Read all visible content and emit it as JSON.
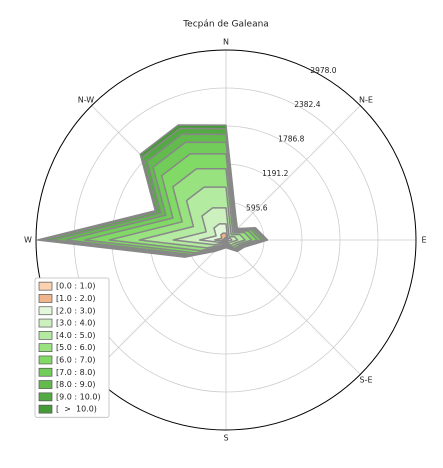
{
  "chart_data": {
    "type": "windrose",
    "title": "Tecpán de Galeana",
    "categories": [
      "N",
      null,
      "N-E",
      null,
      "E",
      null,
      "S-E",
      null,
      "S",
      null,
      null,
      null,
      "W",
      null,
      "N-W",
      null
    ],
    "rlim": [
      0,
      2978
    ],
    "rticks": [
      595.6,
      1191.2,
      1786.8,
      2382.4,
      {
        "value": 2978,
        "label": "2978.0"
      }
    ],
    "legend": "lower left",
    "series": [
      {
        "name": "[0.0 : 1.0)",
        "color": "#fbd3b0",
        "values": [
          36,
          8,
          5,
          10,
          13,
          6,
          5,
          3,
          2,
          3,
          5,
          14,
          59,
          24,
          38,
          39
        ]
      },
      {
        "name": "[1.0 : 2.0)",
        "color": "#f0b58a",
        "values": [
          72,
          16,
          10,
          20,
          26,
          12,
          10,
          6,
          5,
          6,
          10,
          28,
          118,
          48,
          76,
          78
        ]
      },
      {
        "name": "[2.0 : 3.0)",
        "color": "#e3f7da",
        "values": [
          144,
          32,
          20,
          40,
          52,
          24,
          20,
          12,
          10,
          12,
          20,
          56,
          236,
          96,
          152,
          156
        ]
      },
      {
        "name": "[3.0 : 4.0)",
        "color": "#ccf1bf",
        "values": [
          252,
          56,
          35,
          70,
          91,
          42,
          35,
          21,
          17,
          21,
          35,
          98,
          413,
          168,
          266,
          273
        ]
      },
      {
        "name": "[4.0 : 5.0)",
        "color": "#b3eba0",
        "values": [
          324,
          72,
          45,
          90,
          117,
          54,
          45,
          27,
          22,
          27,
          45,
          126,
          531,
          216,
          342,
          351
        ]
      },
      {
        "name": "[5.0 : 6.0)",
        "color": "#98e27f",
        "values": [
          288,
          64,
          40,
          80,
          104,
          48,
          40,
          24,
          19,
          24,
          40,
          112,
          472,
          192,
          304,
          312
        ]
      },
      {
        "name": "[6.0 : 7.0)",
        "color": "#82da66",
        "values": [
          234,
          52,
          33,
          65,
          85,
          39,
          33,
          20,
          16,
          20,
          33,
          91,
          384,
          156,
          247,
          254
        ]
      },
      {
        "name": "[7.0 : 8.0)",
        "color": "#72cc59",
        "values": [
          180,
          40,
          25,
          50,
          65,
          30,
          25,
          15,
          12,
          15,
          25,
          70,
          295,
          120,
          190,
          195
        ]
      },
      {
        "name": "[8.0 : 9.0)",
        "color": "#62bb4c",
        "values": [
          126,
          28,
          18,
          35,
          46,
          21,
          18,
          11,
          8,
          11,
          18,
          49,
          207,
          84,
          133,
          137
        ]
      },
      {
        "name": "[9.0 : 10.0)",
        "color": "#54aa42",
        "values": [
          90,
          20,
          13,
          25,
          33,
          15,
          13,
          8,
          6,
          8,
          13,
          35,
          148,
          60,
          95,
          98
        ]
      },
      {
        "name": "[  >  10.0)",
        "color": "#469a37",
        "values": [
          54,
          12,
          8,
          15,
          20,
          9,
          8,
          5,
          4,
          5,
          8,
          21,
          89,
          36,
          57,
          59
        ]
      }
    ]
  }
}
